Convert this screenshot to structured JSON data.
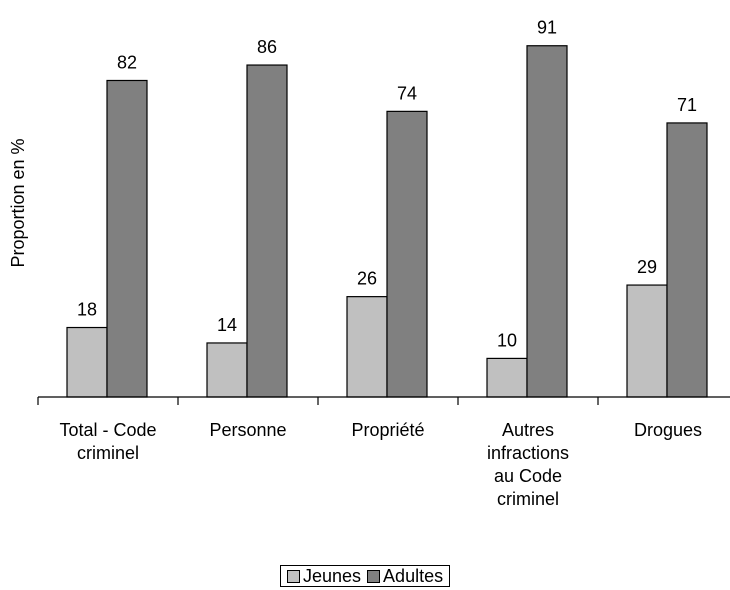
{
  "chart_data": {
    "type": "bar",
    "title": "",
    "xlabel": "",
    "ylabel": "Proportion en %",
    "ylim": [
      0,
      100
    ],
    "grid": false,
    "legend_position": "bottom",
    "categories": [
      [
        "Total - Code",
        "criminel"
      ],
      [
        "Personne"
      ],
      [
        "Propriété"
      ],
      [
        "Autres",
        "infractions",
        "au Code",
        "criminel"
      ],
      [
        "Drogues"
      ]
    ],
    "series": [
      {
        "name": "Jeunes",
        "values": [
          18,
          14,
          26,
          10,
          29
        ],
        "color": "#c0c0c0"
      },
      {
        "name": "Adultes",
        "values": [
          82,
          86,
          74,
          91,
          71
        ],
        "color": "#808080"
      }
    ]
  }
}
